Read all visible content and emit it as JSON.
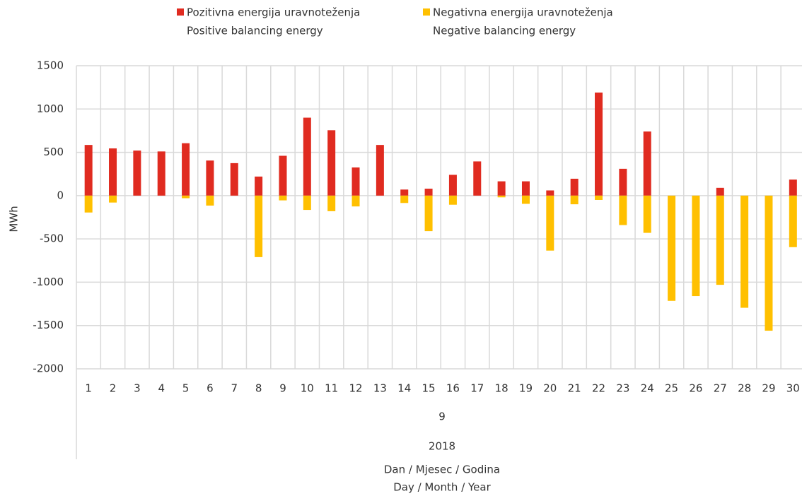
{
  "chart_data": {
    "type": "bar",
    "ylabel": "MWh",
    "xlabel": [
      "Dan / Mjesec / Godina",
      "Day / Month / Year"
    ],
    "month": "9",
    "year": "2018",
    "categories": [
      "1",
      "2",
      "3",
      "4",
      "5",
      "6",
      "7",
      "8",
      "9",
      "10",
      "11",
      "12",
      "13",
      "14",
      "15",
      "16",
      "17",
      "18",
      "19",
      "20",
      "21",
      "22",
      "23",
      "24",
      "25",
      "26",
      "27",
      "28",
      "29",
      "30"
    ],
    "series": [
      {
        "name": [
          "Pozitivna energija uravnoteženja",
          "Positive balancing energy"
        ],
        "color": "#e02b20",
        "values": [
          585,
          545,
          520,
          510,
          605,
          405,
          375,
          220,
          460,
          900,
          755,
          325,
          585,
          70,
          80,
          240,
          395,
          165,
          165,
          60,
          195,
          1190,
          310,
          740,
          0,
          0,
          90,
          0,
          0,
          185
        ]
      },
      {
        "name": [
          "Negativna energija uravnoteženja",
          "Negative balancing energy"
        ],
        "color": "#ffc000",
        "values": [
          -195,
          -80,
          0,
          0,
          -30,
          -115,
          0,
          -710,
          -55,
          -165,
          -180,
          -125,
          0,
          -85,
          -410,
          -105,
          0,
          -20,
          -95,
          -635,
          -100,
          -50,
          -340,
          -430,
          -1215,
          -1160,
          -1030,
          -1295,
          -1560,
          -595
        ]
      }
    ],
    "ylim": [
      -2000,
      1500
    ],
    "yticks": [
      -2000,
      -1500,
      -1000,
      -500,
      0,
      500,
      1000,
      1500
    ],
    "grid": true
  }
}
